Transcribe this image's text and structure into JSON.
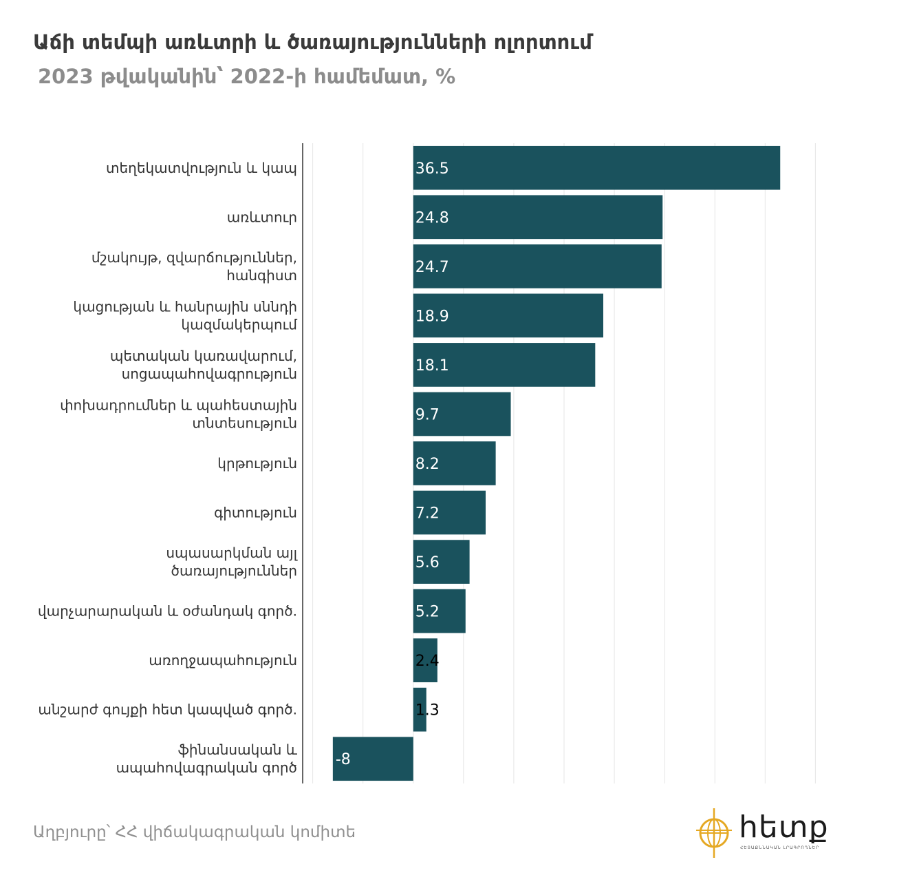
{
  "title": "Աճի տեմպի առևտրի և ծառայությունների ոլորտում",
  "subtitle": "2023 թվականին՝ 2022-ի համեմատ, %",
  "source": "Աղբյուրը՝ ՀՀ վիճակագրական կոմիտե",
  "logo": {
    "text": "հետք",
    "tagline": "ՀԵՏԱՔՆՆԱԿԱՆ ԼՐԱԳՐՈՂՆԵՐ",
    "icon": "globe-compass-icon",
    "color": "#e5a823"
  },
  "colors": {
    "bar": "#1a525d",
    "label_inside": "#ffffff",
    "label_outside": "#000000",
    "grid": "#e6e6e6",
    "axis": "#333333",
    "category_text": "#333333"
  },
  "chart_data": {
    "type": "bar",
    "orientation": "horizontal",
    "xlim": [
      -11,
      41
    ],
    "grid": true,
    "categories": [
      [
        "տեղեկատվություն և կապ"
      ],
      [
        "առևտուր"
      ],
      [
        "մշակույթ, զվարճություններ,",
        "հանգիստ"
      ],
      [
        "կացության և հանրային սննդի",
        "կազմակերպում"
      ],
      [
        "պետական կառավարում,",
        "սոցապահովագրություն"
      ],
      [
        "փոխադրումներ և պահեստային",
        "տնտեսություն"
      ],
      [
        "կրթություն"
      ],
      [
        "գիտություն"
      ],
      [
        "սպասարկման այլ",
        "ծառայություններ"
      ],
      [
        "վարչարարական և օժանդակ գործ."
      ],
      [
        "առողջապահություն"
      ],
      [
        "անշարժ գույքի հետ կապված գործ."
      ],
      [
        "ֆինանսական և",
        "ապահովագրական գործ"
      ]
    ],
    "values": [
      36.5,
      24.8,
      24.7,
      18.9,
      18.1,
      9.7,
      8.2,
      7.2,
      5.6,
      5.2,
      2.4,
      1.3,
      -8
    ],
    "data_labels": [
      "36.5",
      "24.8",
      "24.7",
      "18.9",
      "18.1",
      "9.7",
      "8.2",
      "7.2",
      "5.6",
      "5.2",
      "2.4",
      "1.3",
      "-8"
    ],
    "gridlines": [
      -10,
      -5,
      0,
      5,
      10,
      15,
      20,
      25,
      30,
      35,
      40
    ]
  }
}
